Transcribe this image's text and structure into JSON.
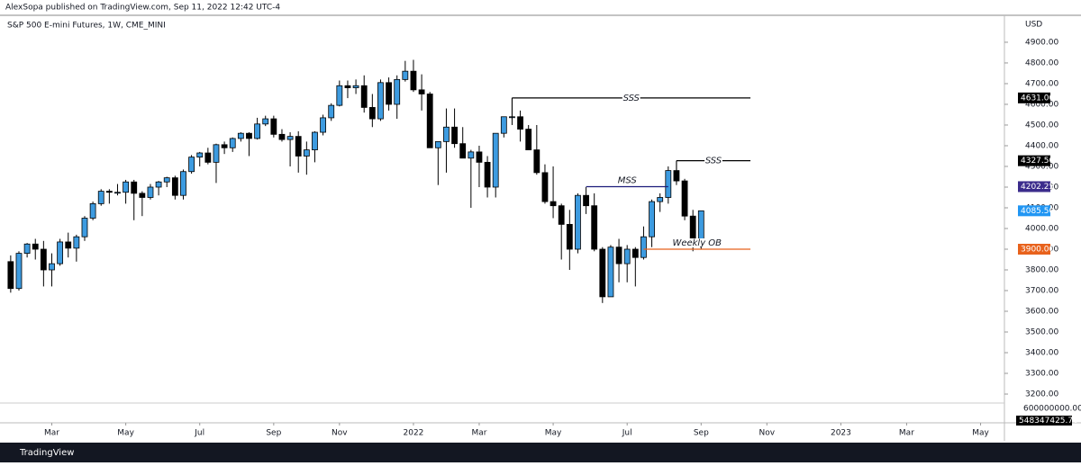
{
  "header": {
    "publisher": "AlexSopa published on TradingView.com, Sep 11, 2022 12:42 UTC-4",
    "footer": "TradingView"
  },
  "chart_data": {
    "type": "candlestick",
    "title": "S&P 500 E-mini Futures, 1W, CME_MINI",
    "y_unit": "USD",
    "open": [
      3840,
      3710,
      3880,
      3925,
      3900,
      3800,
      3830,
      3935,
      3905,
      3960,
      4050,
      4120,
      4180,
      4175,
      4175,
      4225,
      4170,
      4150,
      4200,
      4225,
      4245,
      4160,
      4275,
      4345,
      4365,
      4320,
      4405,
      4390,
      4435,
      4460,
      4435,
      4505,
      4530,
      4455,
      4430,
      4445,
      4350,
      4380,
      4465,
      4535,
      4595,
      4690,
      4680,
      4690,
      4585,
      4530,
      4705,
      4600,
      4720,
      4760,
      4670,
      4650,
      4390,
      4420,
      4490,
      4410,
      4340,
      4370,
      4320,
      4200,
      4460,
      4540,
      4540,
      4480,
      4380,
      4270,
      4130,
      4110,
      4020,
      3900,
      4160,
      4110,
      3900,
      3670,
      3910,
      3830,
      3900,
      3860,
      3960,
      4130,
      4150,
      4280,
      4230,
      4060,
      3925
    ],
    "high": [
      3870,
      3890,
      3930,
      3950,
      3940,
      3880,
      3950,
      3980,
      3970,
      4060,
      4130,
      4190,
      4190,
      4215,
      4235,
      4235,
      4180,
      4215,
      4230,
      4250,
      4255,
      4285,
      4355,
      4370,
      4390,
      4410,
      4420,
      4440,
      4465,
      4465,
      4535,
      4545,
      4545,
      4480,
      4465,
      4470,
      4420,
      4470,
      4550,
      4605,
      4715,
      4715,
      4720,
      4740,
      4650,
      4720,
      4730,
      4740,
      4810,
      4815,
      4745,
      4660,
      4420,
      4580,
      4580,
      4490,
      4380,
      4400,
      4350,
      4460,
      4540,
      4631,
      4570,
      4500,
      4500,
      4310,
      4300,
      4120,
      4090,
      4170,
      4200,
      4170,
      3910,
      3920,
      3950,
      3920,
      3910,
      4010,
      4140,
      4170,
      4300,
      4327.5,
      4240,
      4090,
      4085.5
    ],
    "low": [
      3690,
      3700,
      3860,
      3850,
      3720,
      3720,
      3820,
      3860,
      3840,
      3940,
      4040,
      4110,
      4120,
      4160,
      4120,
      4040,
      4060,
      4140,
      4160,
      4200,
      4140,
      4140,
      4265,
      4300,
      4310,
      4220,
      4360,
      4370,
      4420,
      4350,
      4430,
      4495,
      4440,
      4420,
      4300,
      4270,
      4260,
      4320,
      4450,
      4520,
      4590,
      4630,
      4650,
      4560,
      4490,
      4520,
      4570,
      4530,
      4710,
      4660,
      4570,
      4390,
      4210,
      4270,
      4390,
      4340,
      4100,
      4200,
      4150,
      4150,
      4440,
      4500,
      4420,
      4380,
      4260,
      4120,
      4050,
      3850,
      3800,
      3880,
      4070,
      3890,
      3640,
      3670,
      3740,
      3740,
      3720,
      3850,
      3910,
      4080,
      4120,
      4210,
      4040,
      3890,
      3900
    ],
    "close": [
      3710,
      3880,
      3925,
      3900,
      3800,
      3830,
      3935,
      3905,
      3960,
      4050,
      4120,
      4180,
      4175,
      4175,
      4225,
      4170,
      4150,
      4200,
      4225,
      4245,
      4160,
      4275,
      4345,
      4365,
      4320,
      4405,
      4390,
      4435,
      4460,
      4435,
      4505,
      4530,
      4455,
      4430,
      4445,
      4350,
      4380,
      4465,
      4535,
      4595,
      4690,
      4680,
      4690,
      4585,
      4530,
      4705,
      4600,
      4720,
      4760,
      4670,
      4650,
      4390,
      4420,
      4490,
      4410,
      4340,
      4370,
      4320,
      4200,
      4460,
      4540,
      4540,
      4480,
      4380,
      4270,
      4130,
      4110,
      4020,
      3900,
      4160,
      4110,
      3900,
      3670,
      3910,
      3830,
      3900,
      3860,
      3960,
      4130,
      4150,
      4280,
      4230,
      4060,
      3925,
      4085.5
    ],
    "up_color": "#3d9be0",
    "down_color": "#000000",
    "xlim": [
      -1.3,
      120.9
    ],
    "xticks": [
      {
        "value": 5,
        "label": "Mar"
      },
      {
        "value": 14,
        "label": "May"
      },
      {
        "value": 23,
        "label": "Jul"
      },
      {
        "value": 32,
        "label": "Sep"
      },
      {
        "value": 40,
        "label": "Nov"
      },
      {
        "value": 49,
        "label": "2022"
      },
      {
        "value": 57,
        "label": "Mar"
      },
      {
        "value": 66,
        "label": "May"
      },
      {
        "value": 75,
        "label": "Jul"
      },
      {
        "value": 84,
        "label": "Sep"
      },
      {
        "value": 92,
        "label": "Nov"
      },
      {
        "value": 101,
        "label": "2023"
      },
      {
        "value": 109,
        "label": "Mar"
      },
      {
        "value": 118,
        "label": "May"
      }
    ],
    "ylim": [
      3161,
      4952
    ],
    "yticks": [
      {
        "value": 3200,
        "label": "3200.00"
      },
      {
        "value": 3300,
        "label": "3300.00"
      },
      {
        "value": 3400,
        "label": "3400.00"
      },
      {
        "value": 3500,
        "label": "3500.00"
      },
      {
        "value": 3600,
        "label": "3600.00"
      },
      {
        "value": 3700,
        "label": "3700.00"
      },
      {
        "value": 3800,
        "label": "3800.00"
      },
      {
        "value": 3900,
        "label": "3900.00"
      },
      {
        "value": 4000,
        "label": "4000.00"
      },
      {
        "value": 4100,
        "label": "4100.00"
      },
      {
        "value": 4200,
        "label": "4200.00"
      },
      {
        "value": 4300,
        "label": "4300.00"
      },
      {
        "value": 4400,
        "label": "4400.00"
      },
      {
        "value": 4500,
        "label": "4500.00"
      },
      {
        "value": 4600,
        "label": "4600.00"
      },
      {
        "value": 4700,
        "label": "4700.00"
      },
      {
        "value": 4800,
        "label": "4800.00"
      },
      {
        "value": 4900,
        "label": "4900.00"
      }
    ],
    "annotations": [
      {
        "text": "SSS",
        "value": 4631,
        "label": "4631.00",
        "start": 61,
        "end": 90,
        "color": "#000000"
      },
      {
        "text": "SSS",
        "value": 4327.5,
        "label": "4327.50",
        "start": 81,
        "end": 90,
        "color": "#000000"
      },
      {
        "text": "MSS",
        "value": 4202.25,
        "label": "4202.25",
        "start": 70,
        "end": 80,
        "color": "#1a1a7a",
        "box": "#3b2c8c"
      },
      {
        "text": "Weekly OB",
        "value": 3900,
        "label": "3900.00",
        "start": 77,
        "end": 90,
        "color": "#e8621c"
      }
    ],
    "last_price": {
      "value": 4085.5,
      "label": "4085.50",
      "color": "#2196f3"
    },
    "volume": {
      "tick": {
        "value": 600000000,
        "label": "600000000.00"
      },
      "last": {
        "value": 548347425.76,
        "label": "548347425.76"
      }
    }
  }
}
